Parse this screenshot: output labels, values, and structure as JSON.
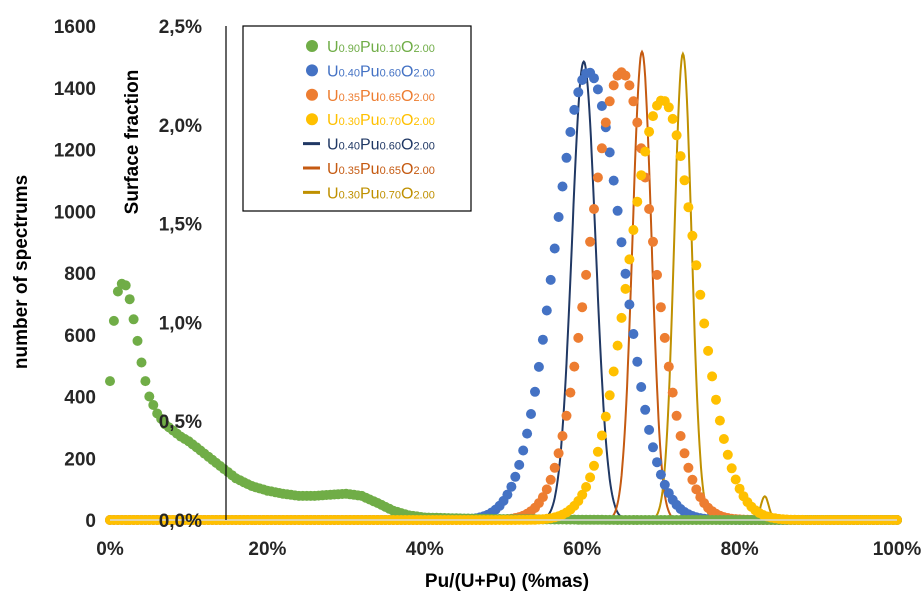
{
  "chart_data": {
    "type": "scatter",
    "xlabel": "Pu/(U+Pu) (%mas)",
    "ylabel": "number of spectrums",
    "y2label": "Surface fraction",
    "xlim": [
      0,
      100
    ],
    "ylim": [
      0,
      1600
    ],
    "y2lim": [
      0,
      2.5
    ],
    "xticks": [
      "0%",
      "20%",
      "40%",
      "60%",
      "80%",
      "100%"
    ],
    "yticks": [
      "0",
      "200",
      "400",
      "600",
      "800",
      "1000",
      "1200",
      "1400",
      "1600"
    ],
    "y2ticks": [
      "0,0%",
      "0,5%",
      "1,0%",
      "1,5%",
      "2,0%",
      "2,5%"
    ],
    "legend_position": "top-center",
    "series": [
      {
        "name": "U0.90Pu0.10O2.00",
        "style": "markers",
        "axis": "left",
        "color": "#70AD47",
        "x": [
          0,
          0.25,
          0.5,
          0.75,
          1,
          1.25,
          1.5,
          1.75,
          2,
          2.25,
          2.5,
          2.75,
          3,
          3.5,
          4,
          4.5,
          5,
          6,
          7,
          8,
          9,
          10,
          11,
          12,
          13,
          14,
          15,
          16,
          18,
          20,
          22,
          24,
          26,
          28,
          30,
          32,
          34,
          36,
          38,
          40,
          45,
          50,
          55,
          60,
          65,
          70,
          75,
          80,
          85,
          90
        ],
        "y": [
          450,
          545,
          645,
          700,
          740,
          755,
          765,
          765,
          760,
          740,
          715,
          685,
          650,
          580,
          510,
          450,
          400,
          345,
          310,
          290,
          270,
          255,
          235,
          215,
          195,
          175,
          155,
          135,
          110,
          95,
          85,
          78,
          78,
          82,
          85,
          78,
          55,
          30,
          15,
          8,
          5,
          3,
          2,
          1,
          0,
          0,
          0,
          0,
          0,
          0
        ]
      },
      {
        "name": "U0.40Pu0.60O2.00",
        "style": "markers",
        "axis": "left",
        "color": "#4472C4",
        "mu": 60.8,
        "sigma": 4.3,
        "peak": 1450
      },
      {
        "name": "U0.35Pu0.65O2.00",
        "style": "markers",
        "axis": "left",
        "color": "#ED7D31",
        "mu": 65.0,
        "sigma": 4.1,
        "peak": 1450
      },
      {
        "name": "U0.30Pu0.70O2.00",
        "style": "markers",
        "axis": "left",
        "color": "#FFC000",
        "mu": 70.2,
        "sigma": 4.3,
        "peak": 1360
      },
      {
        "name": "U0.40Pu0.60O2.00",
        "style": "line",
        "axis": "right",
        "color": "#203864",
        "mu": 60.2,
        "sigma": 1.5,
        "peak": 2.32
      },
      {
        "name": "U0.35Pu0.65O2.00",
        "style": "line",
        "axis": "right",
        "color": "#C55A11",
        "mu": 67.6,
        "sigma": 1.2,
        "peak": 2.37
      },
      {
        "name": "U0.30Pu0.70O2.00",
        "style": "line",
        "axis": "right",
        "color": "#BF9000",
        "mu": 72.8,
        "sigma": 1.1,
        "peak": 2.36,
        "bump": {
          "mu": 83.2,
          "sigma": 0.5,
          "peak": 0.12
        }
      }
    ],
    "legend": [
      {
        "parts": [
          [
            "U",
            ""
          ],
          [
            "0.90",
            "sub"
          ],
          [
            "Pu",
            ""
          ],
          [
            "0.10",
            "sub"
          ],
          [
            "O",
            ""
          ],
          [
            "2.00",
            "sub"
          ]
        ]
      },
      {
        "parts": [
          [
            "U",
            ""
          ],
          [
            "0.40",
            "sub"
          ],
          [
            "Pu",
            ""
          ],
          [
            "0.60",
            "sub"
          ],
          [
            "O",
            ""
          ],
          [
            "2.00",
            "sub"
          ]
        ]
      },
      {
        "parts": [
          [
            "U",
            ""
          ],
          [
            "0.35",
            "sub"
          ],
          [
            "Pu",
            ""
          ],
          [
            "0.65",
            "sub"
          ],
          [
            "O",
            ""
          ],
          [
            "2.00",
            "sub"
          ]
        ]
      },
      {
        "parts": [
          [
            "U",
            ""
          ],
          [
            "0.30",
            "sub"
          ],
          [
            "Pu",
            ""
          ],
          [
            "0.70",
            "sub"
          ],
          [
            "O",
            ""
          ],
          [
            "2.00",
            "sub"
          ]
        ]
      },
      {
        "parts": [
          [
            "U",
            ""
          ],
          [
            "0.40",
            "sub"
          ],
          [
            "Pu",
            ""
          ],
          [
            "0.60",
            "sub"
          ],
          [
            "O",
            ""
          ],
          [
            "2.00",
            "sub"
          ]
        ]
      },
      {
        "parts": [
          [
            "U",
            ""
          ],
          [
            "0.35",
            "sub"
          ],
          [
            "Pu",
            ""
          ],
          [
            "0.65",
            "sub"
          ],
          [
            "O",
            ""
          ],
          [
            "2.00",
            "sub"
          ]
        ]
      },
      {
        "parts": [
          [
            "U",
            ""
          ],
          [
            "0.30",
            "sub"
          ],
          [
            "Pu",
            ""
          ],
          [
            "0.70",
            "sub"
          ],
          [
            "O",
            ""
          ],
          [
            "2.00",
            "sub"
          ]
        ]
      }
    ]
  }
}
